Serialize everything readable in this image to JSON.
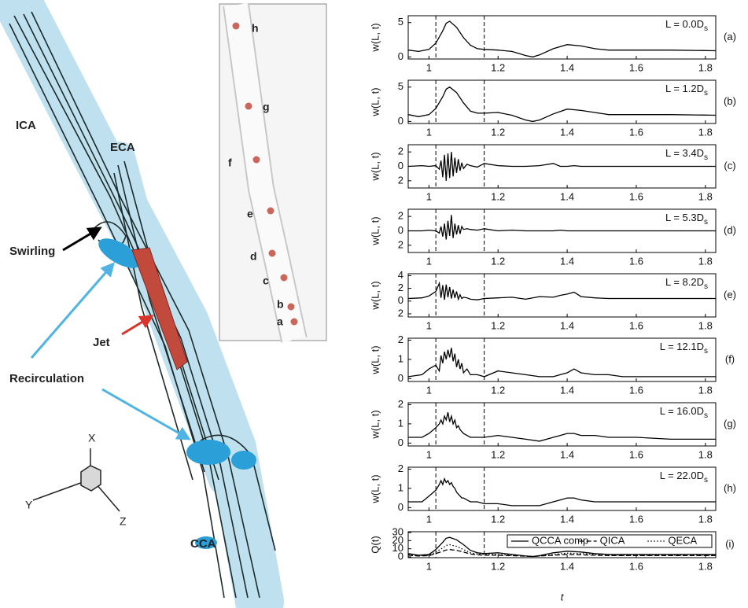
{
  "illustration": {
    "labels": [
      "ICA",
      "ECA",
      "Swirling",
      "Jet",
      "Recirculation",
      "CCA"
    ],
    "axes": [
      "X",
      "Y",
      "Z"
    ],
    "inset_points": [
      "h",
      "g",
      "f",
      "e",
      "d",
      "c",
      "b",
      "a"
    ]
  },
  "chart_data": [
    {
      "type": "line",
      "panel": "(a)",
      "annotation": [
        "L = 0.0D",
        "s"
      ],
      "ylabel": "w(L, t)",
      "xlim": [
        0.94,
        1.83
      ],
      "xticks": [
        1,
        1.2,
        1.4,
        1.6,
        1.8
      ],
      "ylim": [
        -0.3,
        6
      ],
      "yticks": [
        0,
        5
      ],
      "vlines": [
        1.02,
        1.16
      ],
      "x": [
        0.94,
        0.97,
        1.0,
        1.02,
        1.04,
        1.05,
        1.06,
        1.08,
        1.1,
        1.12,
        1.14,
        1.16,
        1.2,
        1.24,
        1.28,
        1.3,
        1.32,
        1.36,
        1.4,
        1.44,
        1.48,
        1.52,
        1.6,
        1.7,
        1.83
      ],
      "series": [
        {
          "color": "#000000",
          "dash": "solid",
          "values": [
            1.0,
            0.8,
            1.1,
            2.0,
            3.8,
            4.9,
            5.2,
            4.3,
            2.8,
            1.7,
            1.2,
            1.1,
            1.0,
            0.8,
            0.2,
            0.0,
            0.3,
            1.2,
            1.8,
            1.6,
            1.2,
            1.0,
            1.0,
            1.0,
            0.9
          ]
        }
      ]
    },
    {
      "type": "line",
      "panel": "(b)",
      "annotation": [
        "L = 1.2D",
        "s"
      ],
      "ylabel": "w(L, t)",
      "xlim": [
        0.94,
        1.83
      ],
      "xticks": [
        1,
        1.2,
        1.4,
        1.6,
        1.8
      ],
      "ylim": [
        -0.3,
        6
      ],
      "yticks": [
        0,
        5
      ],
      "vlines": [
        1.02,
        1.16
      ],
      "x": [
        0.94,
        0.97,
        1.0,
        1.02,
        1.04,
        1.05,
        1.06,
        1.08,
        1.1,
        1.12,
        1.14,
        1.16,
        1.2,
        1.24,
        1.28,
        1.3,
        1.32,
        1.36,
        1.4,
        1.44,
        1.48,
        1.52,
        1.6,
        1.7,
        1.83
      ],
      "series": [
        {
          "color": "#000000",
          "dash": "solid",
          "values": [
            1.0,
            0.7,
            1.0,
            1.9,
            3.6,
            4.7,
            5.0,
            4.2,
            2.7,
            1.5,
            1.2,
            1.2,
            1.3,
            0.9,
            0.2,
            0.0,
            0.2,
            1.1,
            1.8,
            1.6,
            1.3,
            1.0,
            1.0,
            1.0,
            0.9
          ]
        }
      ]
    },
    {
      "type": "line",
      "panel": "(c)",
      "annotation": [
        "L = 3.4D",
        "s"
      ],
      "ylabel": "w(L, t)",
      "xlim": [
        0.94,
        1.83
      ],
      "xticks": [
        1,
        1.2,
        1.4,
        1.6,
        1.8
      ],
      "ylim": [
        -3,
        3
      ],
      "yticks": [
        {
          "value": -2,
          "label": "2"
        },
        0,
        2
      ],
      "vlines": [
        1.02,
        1.16
      ],
      "x": [
        0.94,
        0.98,
        1.0,
        1.02,
        1.03,
        1.035,
        1.04,
        1.045,
        1.05,
        1.055,
        1.06,
        1.065,
        1.07,
        1.075,
        1.08,
        1.085,
        1.09,
        1.095,
        1.1,
        1.11,
        1.12,
        1.14,
        1.16,
        1.2,
        1.24,
        1.28,
        1.32,
        1.36,
        1.38,
        1.4,
        1.42,
        1.44,
        1.48,
        1.52,
        1.56,
        1.6,
        1.7,
        1.83
      ],
      "series": [
        {
          "color": "#000000",
          "dash": "solid",
          "values": [
            0,
            0.1,
            0,
            0.1,
            -0.4,
            0.8,
            -1.5,
            1.6,
            -2.0,
            1.8,
            -1.6,
            2.0,
            -1.4,
            1.2,
            -0.9,
            1.0,
            -0.6,
            0.5,
            -0.3,
            0.3,
            0.1,
            -0.1,
            0.4,
            0.1,
            0,
            0,
            0.1,
            0.4,
            0,
            0,
            0.1,
            0,
            0,
            0,
            0,
            0,
            0,
            0
          ]
        }
      ]
    },
    {
      "type": "line",
      "panel": "(d)",
      "annotation": [
        "L = 5.3D",
        "s"
      ],
      "ylabel": "w(L, t)",
      "xlim": [
        0.94,
        1.83
      ],
      "xticks": [
        1,
        1.2,
        1.4,
        1.6,
        1.8
      ],
      "ylim": [
        -3,
        3
      ],
      "yticks": [
        {
          "value": -2,
          "label": "2"
        },
        0,
        2
      ],
      "vlines": [
        1.02,
        1.16
      ],
      "x": [
        0.94,
        0.98,
        1.0,
        1.02,
        1.03,
        1.035,
        1.04,
        1.045,
        1.05,
        1.055,
        1.06,
        1.065,
        1.07,
        1.075,
        1.08,
        1.085,
        1.09,
        1.095,
        1.1,
        1.11,
        1.12,
        1.14,
        1.16,
        1.2,
        1.24,
        1.28,
        1.32,
        1.36,
        1.38,
        1.4,
        1.42,
        1.44,
        1.48,
        1.52,
        1.56,
        1.6,
        1.7,
        1.83
      ],
      "series": [
        {
          "color": "#000000",
          "dash": "solid",
          "values": [
            0,
            0,
            0.1,
            0,
            -0.3,
            0.6,
            -0.8,
            1.0,
            -1.2,
            1.4,
            -0.7,
            2.2,
            -1.0,
            1.0,
            -0.5,
            0.8,
            -0.4,
            0.6,
            0.2,
            0.3,
            0.2,
            0.1,
            0.3,
            0,
            0.1,
            0,
            0,
            0,
            0.1,
            0,
            0,
            0,
            0,
            0,
            0,
            0,
            0,
            0
          ]
        }
      ]
    },
    {
      "type": "line",
      "panel": "(e)",
      "annotation": [
        "L = 8.2D",
        "s"
      ],
      "ylabel": "w(L, t)",
      "xlim": [
        0.94,
        1.83
      ],
      "xticks": [
        1,
        1.2,
        1.4,
        1.6,
        1.8
      ],
      "ylim": [
        -2.5,
        4.3
      ],
      "yticks": [
        {
          "value": -2,
          "label": "2"
        },
        0,
        2,
        4
      ],
      "vlines": [
        1.02,
        1.16
      ],
      "x": [
        0.94,
        0.98,
        1.0,
        1.02,
        1.03,
        1.035,
        1.04,
        1.045,
        1.05,
        1.055,
        1.06,
        1.065,
        1.07,
        1.075,
        1.08,
        1.085,
        1.09,
        1.095,
        1.1,
        1.11,
        1.12,
        1.14,
        1.16,
        1.2,
        1.24,
        1.28,
        1.32,
        1.36,
        1.38,
        1.4,
        1.42,
        1.44,
        1.48,
        1.52,
        1.56,
        1.6,
        1.7,
        1.83
      ],
      "series": [
        {
          "color": "#000000",
          "dash": "solid",
          "values": [
            0.4,
            0.5,
            0.8,
            1.5,
            2.8,
            0.5,
            2.5,
            0.2,
            2.6,
            0.6,
            2.2,
            0.4,
            1.8,
            0.5,
            1.5,
            0.3,
            1.0,
            0.4,
            0.6,
            0.5,
            0.3,
            0.2,
            0.4,
            0.5,
            0.6,
            0.3,
            0.7,
            0.6,
            0.9,
            1.1,
            1.4,
            0.7,
            0.5,
            0.4,
            0.4,
            0.4,
            0.4,
            0.4
          ]
        }
      ]
    },
    {
      "type": "line",
      "panel": "(f)",
      "annotation": [
        "L = 12.1D",
        "s"
      ],
      "ylabel": "w(L, t)",
      "xlim": [
        0.94,
        1.83
      ],
      "xticks": [
        1,
        1.2,
        1.4,
        1.6,
        1.8
      ],
      "ylim": [
        -0.15,
        2.1
      ],
      "yticks": [
        0,
        1,
        2
      ],
      "vlines": [
        1.02,
        1.16
      ],
      "x": [
        0.94,
        0.98,
        1.0,
        1.02,
        1.03,
        1.035,
        1.04,
        1.045,
        1.05,
        1.055,
        1.06,
        1.065,
        1.07,
        1.075,
        1.08,
        1.085,
        1.09,
        1.095,
        1.1,
        1.11,
        1.12,
        1.14,
        1.16,
        1.2,
        1.24,
        1.28,
        1.32,
        1.36,
        1.38,
        1.4,
        1.42,
        1.44,
        1.48,
        1.52,
        1.56,
        1.6,
        1.7,
        1.83
      ],
      "series": [
        {
          "color": "#000000",
          "dash": "solid",
          "values": [
            0.1,
            0.2,
            0.5,
            0.7,
            0.4,
            1.2,
            0.8,
            1.4,
            1.0,
            1.5,
            1.1,
            1.6,
            0.9,
            1.3,
            0.6,
            1.0,
            0.5,
            0.8,
            0.3,
            0.5,
            0.2,
            0.2,
            0.1,
            0.4,
            0.3,
            0.2,
            0.1,
            0.1,
            0.2,
            0.3,
            0.5,
            0.3,
            0.2,
            0.2,
            0.1,
            0.1,
            0.1,
            0.1
          ]
        }
      ]
    },
    {
      "type": "line",
      "panel": "(g)",
      "annotation": [
        "L = 16.0D",
        "s"
      ],
      "ylabel": "w(L, t)",
      "xlim": [
        0.94,
        1.83
      ],
      "xticks": [
        1,
        1.2,
        1.4,
        1.6,
        1.8
      ],
      "ylim": [
        -0.15,
        2.1
      ],
      "yticks": [
        0,
        1,
        2
      ],
      "vlines": [
        1.02,
        1.16
      ],
      "x": [
        0.94,
        0.98,
        1.0,
        1.02,
        1.03,
        1.035,
        1.04,
        1.045,
        1.05,
        1.055,
        1.06,
        1.065,
        1.07,
        1.075,
        1.08,
        1.085,
        1.09,
        1.095,
        1.1,
        1.11,
        1.12,
        1.14,
        1.16,
        1.2,
        1.24,
        1.28,
        1.32,
        1.36,
        1.38,
        1.4,
        1.42,
        1.44,
        1.48,
        1.52,
        1.56,
        1.6,
        1.7,
        1.83
      ],
      "series": [
        {
          "color": "#000000",
          "dash": "solid",
          "values": [
            0.3,
            0.3,
            0.5,
            0.8,
            1.0,
            1.2,
            1.0,
            1.4,
            1.2,
            1.6,
            1.1,
            1.4,
            1.0,
            1.2,
            0.8,
            0.9,
            0.7,
            0.6,
            0.5,
            0.4,
            0.3,
            0.3,
            0.3,
            0.4,
            0.3,
            0.2,
            0.1,
            0.3,
            0.4,
            0.5,
            0.5,
            0.4,
            0.4,
            0.3,
            0.3,
            0.3,
            0.2,
            0.2
          ]
        }
      ]
    },
    {
      "type": "line",
      "panel": "(h)",
      "annotation": [
        "L = 22.0D",
        "s"
      ],
      "ylabel": "w(L, t)",
      "xlim": [
        0.94,
        1.83
      ],
      "xticks": [
        1,
        1.2,
        1.4,
        1.6,
        1.8
      ],
      "ylim": [
        -0.15,
        2.1
      ],
      "yticks": [
        0,
        1,
        2
      ],
      "vlines": [
        1.02,
        1.16
      ],
      "x": [
        0.94,
        0.98,
        1.0,
        1.02,
        1.03,
        1.035,
        1.04,
        1.045,
        1.05,
        1.055,
        1.06,
        1.065,
        1.07,
        1.075,
        1.08,
        1.085,
        1.09,
        1.095,
        1.1,
        1.11,
        1.12,
        1.14,
        1.16,
        1.2,
        1.24,
        1.28,
        1.32,
        1.36,
        1.38,
        1.4,
        1.42,
        1.44,
        1.48,
        1.52,
        1.56,
        1.6,
        1.7,
        1.83
      ],
      "series": [
        {
          "color": "#000000",
          "dash": "solid",
          "values": [
            0.3,
            0.3,
            0.6,
            0.9,
            1.2,
            1.4,
            1.2,
            1.5,
            1.3,
            1.4,
            1.2,
            1.3,
            1.1,
            1.0,
            0.8,
            0.7,
            0.6,
            0.5,
            0.5,
            0.4,
            0.3,
            0.3,
            0.2,
            0.2,
            0.1,
            0.1,
            0.1,
            0.3,
            0.4,
            0.5,
            0.5,
            0.4,
            0.3,
            0.3,
            0.3,
            0.3,
            0.3,
            0.3
          ]
        }
      ]
    },
    {
      "type": "line",
      "panel": "(i)",
      "ylabel": "Q(t)",
      "xlabel": "t",
      "xlim": [
        0.94,
        1.83
      ],
      "xticks": [
        1,
        1.2,
        1.4,
        1.6,
        1.8
      ],
      "ylim": [
        -1,
        31
      ],
      "yticks": [
        0,
        10,
        20,
        30
      ],
      "vlines": [
        1.02,
        1.16
      ],
      "x": [
        0.94,
        0.97,
        1.0,
        1.02,
        1.04,
        1.05,
        1.06,
        1.08,
        1.1,
        1.12,
        1.14,
        1.16,
        1.2,
        1.24,
        1.28,
        1.3,
        1.32,
        1.36,
        1.4,
        1.44,
        1.48,
        1.52,
        1.6,
        1.7,
        1.83
      ],
      "series": [
        {
          "name": "QCCA comp",
          "color": "#000000",
          "dash": "solid",
          "values": [
            4,
            2,
            3,
            9,
            18,
            23,
            24,
            21,
            15,
            8,
            5,
            4,
            5,
            3,
            1,
            0.5,
            1.5,
            5,
            7,
            6,
            4,
            3,
            3,
            3,
            3
          ]
        },
        {
          "name": "QICA",
          "color": "#000000",
          "dash": "dashed",
          "values": [
            2,
            1,
            1.5,
            4,
            7,
            8.5,
            9,
            8,
            6,
            3.5,
            2.5,
            2,
            2,
            1.5,
            0.8,
            0.5,
            1,
            2,
            3,
            2.5,
            2,
            1.5,
            1.5,
            1.5,
            1.5
          ]
        },
        {
          "name": "QECA",
          "color": "#000000",
          "dash": "dotted",
          "values": [
            3,
            1.5,
            2,
            6,
            11,
            14,
            15,
            13,
            9,
            5,
            3.5,
            3,
            3,
            2,
            1,
            0.5,
            1,
            3,
            4.5,
            4,
            3,
            2,
            2,
            2,
            2
          ]
        }
      ]
    }
  ]
}
